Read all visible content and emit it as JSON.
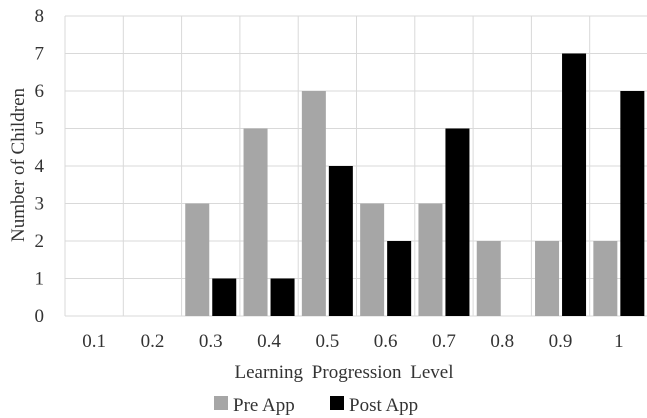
{
  "chart_data": {
    "type": "bar",
    "categories": [
      "0.1",
      "0.2",
      "0.3",
      "0.4",
      "0.5",
      "0.6",
      "0.7",
      "0.8",
      "0.9",
      "1"
    ],
    "series": [
      {
        "name": "Pre App",
        "values": [
          0,
          0,
          3,
          5,
          6,
          3,
          3,
          2,
          2,
          2
        ],
        "color": "#a6a6a6"
      },
      {
        "name": "Post App",
        "values": [
          0,
          0,
          1,
          1,
          4,
          2,
          5,
          0,
          7,
          6
        ],
        "color": "#000000"
      }
    ],
    "xlabel": "Learning Progression Level",
    "ylabel": "Number of Children",
    "ylim": [
      0,
      8
    ],
    "yticks": [
      "0",
      "1",
      "2",
      "3",
      "4",
      "5",
      "6",
      "7",
      "8"
    ],
    "grid": true,
    "legend_position": "bottom"
  }
}
